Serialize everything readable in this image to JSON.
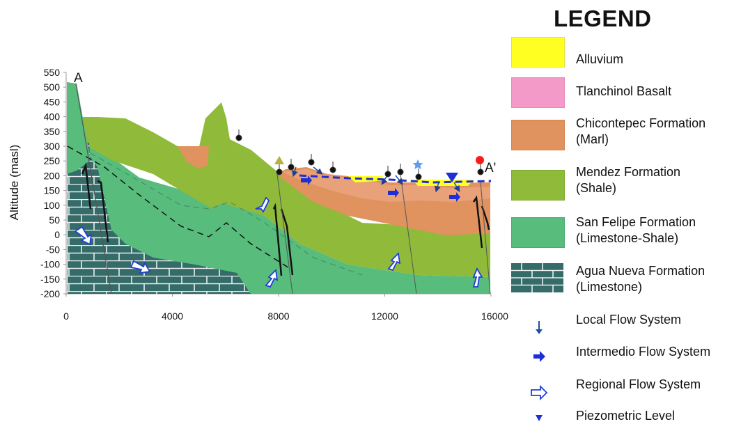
{
  "cross_section": {
    "label_start": "A",
    "label_end": "A'",
    "y_axis": {
      "title": "Altitude (masl)",
      "ticks": [
        "550",
        "500",
        "450",
        "400",
        "350",
        "300",
        "250",
        "200",
        "150",
        "100",
        "50",
        "0",
        "-50",
        "-100",
        "-150",
        "-200"
      ]
    },
    "x_axis": {
      "ticks": [
        "0",
        "4000",
        "8000",
        "12000",
        "16000 m."
      ]
    }
  },
  "legend": {
    "title": "LEGEND",
    "units": [
      {
        "label": "Alluvium",
        "color": "#ffff22"
      },
      {
        "label": "Tlanchinol Basalt",
        "color": "#f39ac8"
      },
      {
        "label_lines": [
          "Chicontepec Formation",
          "(Marl)"
        ],
        "color": "#e0935e"
      },
      {
        "label_lines": [
          "Mendez Formation",
          "(Shale)"
        ],
        "color": "#8fba3a"
      },
      {
        "label_lines": [
          "San Felipe Formation",
          "(Limestone-Shale)"
        ],
        "color": "#57bc7c"
      },
      {
        "label_lines": [
          "Agua Nueva Formation",
          "(Limestone)"
        ],
        "color": "#356b68"
      }
    ],
    "flow": [
      {
        "label": "Local Flow System",
        "icon": "local-flow-arrow-icon"
      },
      {
        "label": "Intermedio Flow System",
        "icon": "intermediate-flow-arrow-icon"
      },
      {
        "label": "Regional Flow System",
        "icon": "regional-flow-arrow-icon"
      },
      {
        "label": "Piezometric Level",
        "icon": "piezometric-level-triangle-icon"
      }
    ]
  }
}
